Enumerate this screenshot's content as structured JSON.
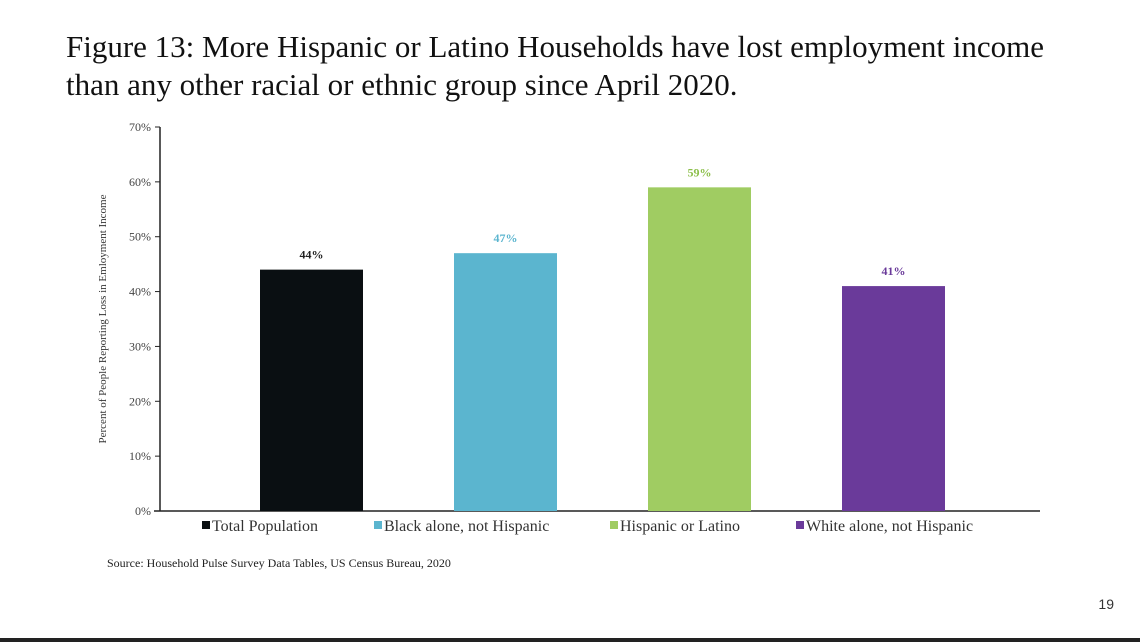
{
  "slide": {
    "title": "Figure 13: More Hispanic or Latino Households have lost employment income than any other racial or ethnic group since April 2020.",
    "source": "Source: Household Pulse Survey Data Tables, US Census Bureau, 2020",
    "page_number": "19"
  },
  "chart_data": {
    "type": "bar",
    "title": "",
    "xlabel": "",
    "ylabel": "Percent of People Reporting Loss in Emloyment Income",
    "ylim": [
      0,
      70
    ],
    "yticks": [
      "0%",
      "10%",
      "20%",
      "30%",
      "40%",
      "50%",
      "60%",
      "70%"
    ],
    "grid": false,
    "legend": "bottom",
    "categories": [
      "Total Population",
      "Black alone, not Hispanic",
      "Hispanic or Latino",
      "White alone, not Hispanic"
    ],
    "values": [
      44,
      47,
      59,
      41
    ],
    "data_labels": [
      "44%",
      "47%",
      "59%",
      "41%"
    ],
    "colors": [
      "#0a0f12",
      "#5bb5cf",
      "#a0cc62",
      "#6a3a9a"
    ],
    "label_colors": [
      "#222222",
      "#5bb5cf",
      "#8cbf4a",
      "#6a3a9a"
    ]
  }
}
